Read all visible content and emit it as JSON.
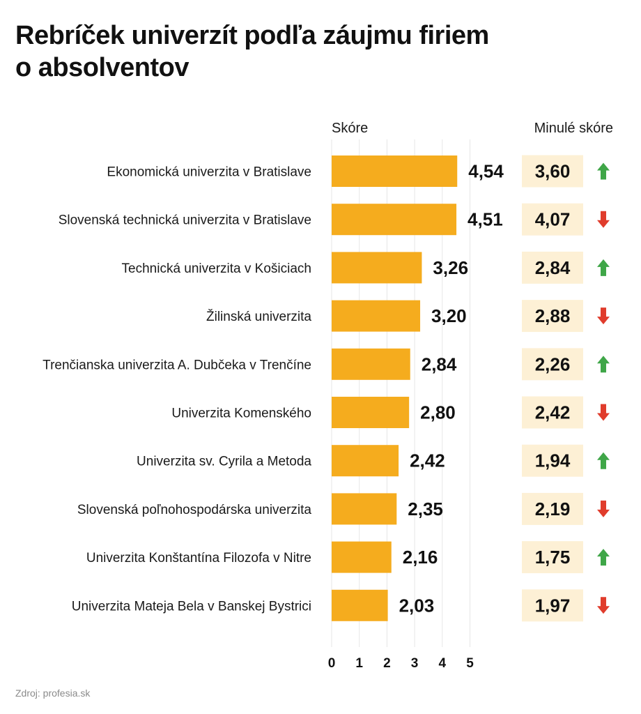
{
  "title": "Rebríček univerzít podľa záujmu firiem o absolventov",
  "source": "Zdroj: profesia.sk",
  "colors": {
    "bar": "#F5AC1E",
    "prev_bg": "#FDF0D5",
    "up": "#3FA648",
    "down": "#E03C2C",
    "grid": "#E6E6E6"
  },
  "chart_data": {
    "type": "bar",
    "orientation": "horizontal",
    "title": "Rebríček univerzít podľa záujmu firiem o absolventov",
    "score_header": "Skóre",
    "previous_header": "Minulé skóre",
    "xlim": [
      0,
      5
    ],
    "x_ticks": [
      "0",
      "1",
      "2",
      "3",
      "4",
      "5"
    ],
    "grid": true,
    "categories": [
      "Ekonomická univerzita v Bratislave",
      "Slovenská technická univerzita v Bratislave",
      "Technická univerzita v Košiciach",
      "Žilinská univerzita",
      "Trenčianska univerzita A. Dubčeka v Trenčíne",
      "Univerzita Komenského",
      "Univerzita sv. Cyrila a Metoda",
      "Slovenská poľnohospodárska univerzita",
      "Univerzita Konštantína Filozofa v Nitre",
      "Univerzita Mateja Bela v Banskej Bystrici"
    ],
    "values": [
      4.54,
      4.51,
      3.26,
      3.2,
      2.84,
      2.8,
      2.42,
      2.35,
      2.16,
      2.03
    ],
    "value_labels": [
      "4,54",
      "4,51",
      "3,26",
      "3,20",
      "2,84",
      "2,80",
      "2,42",
      "2,35",
      "2,16",
      "2,03"
    ],
    "previous_values": [
      3.6,
      4.07,
      2.84,
      2.88,
      2.26,
      2.42,
      1.94,
      2.19,
      1.75,
      1.97
    ],
    "previous_labels": [
      "3,60",
      "4,07",
      "2,84",
      "2,88",
      "2,26",
      "2,42",
      "1,94",
      "2,19",
      "1,75",
      "1,97"
    ],
    "trend": [
      "up",
      "down",
      "up",
      "down",
      "up",
      "down",
      "up",
      "down",
      "up",
      "down"
    ]
  }
}
